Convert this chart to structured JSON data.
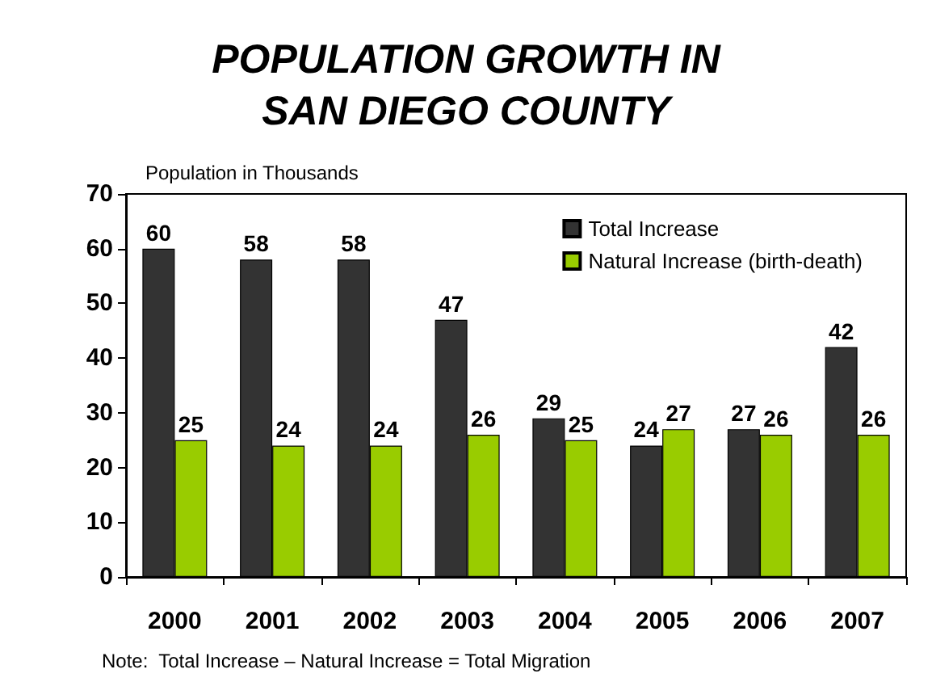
{
  "chart_data": {
    "type": "bar",
    "title": "POPULATION GROWTH IN\nSAN DIEGO COUNTY",
    "ylabel": "Population in Thousands",
    "categories": [
      "2000",
      "2001",
      "2002",
      "2003",
      "2004",
      "2005",
      "2006",
      "2007"
    ],
    "series": [
      {
        "name": "Total Increase",
        "color": "#333333",
        "values": [
          60,
          58,
          58,
          47,
          29,
          24,
          27,
          42
        ]
      },
      {
        "name": "Natural Increase (birth-death)",
        "color": "#99cc00",
        "values": [
          25,
          24,
          24,
          26,
          25,
          27,
          26,
          26
        ]
      }
    ],
    "ylim": [
      0,
      70
    ],
    "yticks": [
      0,
      10,
      20,
      30,
      40,
      50,
      60,
      70
    ],
    "grid": false,
    "legend": "top right",
    "data_labels": true,
    "annotations": [
      "Note:  Total Increase – Natural Increase = Total Migration"
    ]
  }
}
